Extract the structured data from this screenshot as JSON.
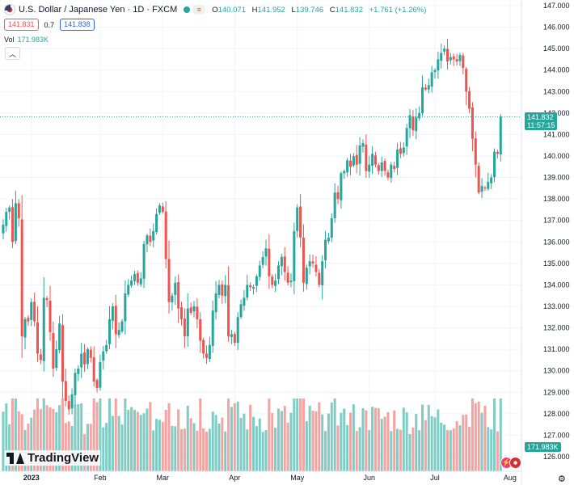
{
  "header": {
    "title": "U.S. Dollar / Japanese Yen · 1D · FXCM",
    "ohlc": [
      {
        "key": "O",
        "value": "140.071"
      },
      {
        "key": "H",
        "value": "141.952"
      },
      {
        "key": "L",
        "value": "139.746"
      },
      {
        "key": "C",
        "value": "141.832"
      }
    ],
    "change": "+1.761 (+1.26%)",
    "sell_price": "141.831",
    "spread": "0.7",
    "buy_price": "141.838",
    "volume_label": "Vol",
    "volume_value": "171.983K",
    "collapse_icon": "chevron-up-icon"
  },
  "price_badge": {
    "price": "141.832",
    "countdown": "11:57:15"
  },
  "volume_badge": "171.983K",
  "logo_text": "TradingView",
  "colors": {
    "up": "#26a69a",
    "down": "#ef5350",
    "vol_up": "#80cbc4",
    "vol_down": "#f4a3a0",
    "grid": "#f0f3fa"
  },
  "chart_data": {
    "type": "candlestick",
    "y_axis": {
      "min": 126,
      "max": 147,
      "ticks": [
        "147.000",
        "146.000",
        "145.000",
        "144.000",
        "143.000",
        "142.000",
        "141.000",
        "140.000",
        "139.000",
        "138.000",
        "137.000",
        "136.000",
        "135.000",
        "134.000",
        "133.000",
        "132.000",
        "131.000",
        "130.000",
        "129.000",
        "128.000",
        "127.000",
        "126.000"
      ]
    },
    "x_axis": {
      "ticks": [
        {
          "label": "2023",
          "index": 9
        },
        {
          "label": "Feb",
          "index": 31
        },
        {
          "label": "Mar",
          "index": 51
        },
        {
          "label": "Apr",
          "index": 74
        },
        {
          "label": "May",
          "index": 94
        },
        {
          "label": "Jun",
          "index": 117
        },
        {
          "label": "Jul",
          "index": 138
        },
        {
          "label": "Aug",
          "index": 162
        }
      ]
    },
    "last_price": 141.832,
    "closes": [
      136.8,
      137.4,
      137.6,
      136.0,
      137.8,
      137.1,
      131.6,
      132.4,
      132.3,
      133.2,
      132.3,
      130.8,
      130.5,
      133.4,
      133.3,
      131.8,
      130.1,
      131.0,
      132.2,
      129.5,
      128.6,
      128.2,
      128.9,
      129.9,
      130.1,
      130.8,
      130.3,
      131.0,
      130.6,
      129.5,
      129.2,
      130.4,
      130.9,
      131.2,
      132.4,
      133.0,
      131.7,
      131.9,
      132.3,
      133.6,
      134.0,
      134.2,
      134.5,
      134.1,
      134.3,
      135.9,
      136.3,
      136.0,
      136.5,
      137.3,
      137.7,
      137.4,
      135.2,
      133.2,
      133.5,
      134.1,
      132.9,
      132.4,
      131.6,
      132.9,
      132.7,
      133.0,
      132.4,
      131.4,
      130.8,
      130.6,
      131.2,
      132.8,
      133.6,
      134.0,
      133.5,
      134.0,
      131.6,
      131.7,
      131.3,
      132.5,
      133.1,
      133.4,
      134.0,
      133.9,
      133.9,
      134.4,
      134.9,
      135.3,
      135.7,
      134.4,
      134.0,
      134.2,
      134.9,
      135.3,
      134.6,
      134.1,
      134.2,
      136.5,
      137.6,
      136.2,
      134.1,
      134.8,
      135.1,
      135.0,
      134.6,
      134.0,
      135.1,
      136.1,
      136.2,
      137.1,
      138.3,
      138.0,
      139.2,
      139.3,
      139.8,
      139.5,
      140.0,
      139.6,
      140.5,
      140.6,
      139.3,
      139.6,
      140.1,
      139.6,
      139.3,
      139.7,
      139.3,
      139.0,
      139.6,
      139.4,
      140.3,
      140.1,
      140.4,
      141.3,
      141.9,
      141.2,
      141.8,
      142.0,
      143.2,
      143.1,
      143.3,
      143.9,
      144.0,
      144.5,
      144.8,
      145.0,
      144.4,
      144.6,
      144.5,
      144.4,
      144.7,
      144.1,
      143.0,
      142.2,
      140.8,
      139.6,
      138.3,
      138.6,
      138.5,
      138.8,
      139.0,
      140.2,
      140.1,
      141.8
    ],
    "volume_note": "Vol 171.983K"
  }
}
